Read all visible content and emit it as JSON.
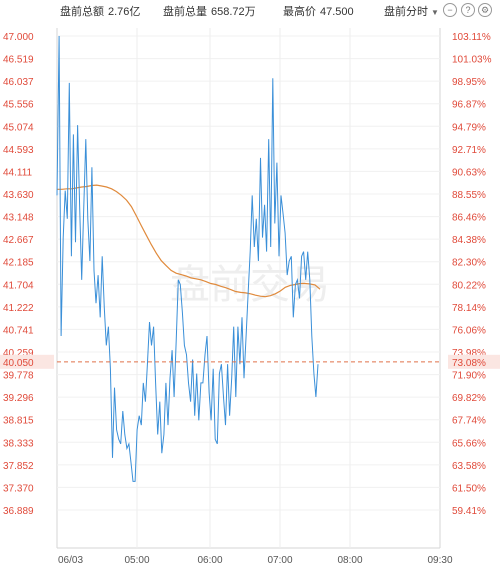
{
  "header": {
    "stats": [
      {
        "label": "盘前总额",
        "value": "2.76亿"
      },
      {
        "label": "盘前总量",
        "value": "658.72万"
      },
      {
        "label": "最高价",
        "value": "47.500"
      }
    ],
    "period_select": "盘前分时"
  },
  "colors": {
    "price_line": "#3a8fd8",
    "avg_line": "#e08a3c",
    "axis_text": "#e04a3a",
    "ref_line": "#e0724a"
  },
  "watermark": "盘前交易",
  "chart_data": {
    "type": "line",
    "ylim": [
      36.889,
      47.0
    ],
    "y_ticks": [
      "47.000",
      "46.519",
      "46.037",
      "45.556",
      "45.074",
      "44.593",
      "44.111",
      "43.630",
      "43.148",
      "42.667",
      "42.185",
      "41.704",
      "41.222",
      "40.741",
      "40.259",
      "39.778",
      "39.296",
      "38.815",
      "38.333",
      "37.852",
      "37.370",
      "36.889"
    ],
    "pct_ticks": [
      "103.11%",
      "101.03%",
      "98.95%",
      "96.87%",
      "94.79%",
      "92.71%",
      "90.63%",
      "88.55%",
      "86.46%",
      "84.38%",
      "82.30%",
      "80.22%",
      "78.14%",
      "76.06%",
      "73.98%",
      "71.90%",
      "69.82%",
      "67.74%",
      "65.66%",
      "63.58%",
      "61.50%",
      "59.41%"
    ],
    "x_ticks": [
      "06/03",
      "05:00",
      "06:00",
      "07:00",
      "08:00",
      "09:30"
    ],
    "ref_price": "40.050",
    "ref_pct": "73.08%",
    "series": [
      {
        "name": "price",
        "values": [
          43.6,
          47.0,
          40.6,
          42.7,
          43.7,
          43.1,
          46.0,
          42.3,
          44.9,
          42.6,
          45.1,
          43.4,
          41.8,
          43.3,
          44.8,
          43.1,
          42.2,
          44.2,
          42.0,
          41.3,
          41.9,
          41.0,
          42.3,
          41.2,
          40.4,
          40.8,
          39.9,
          38.0,
          39.5,
          38.6,
          38.4,
          38.3,
          39.0,
          38.5,
          38.2,
          38.3,
          37.9,
          37.5,
          37.5,
          38.6,
          38.9,
          38.7,
          39.6,
          39.2,
          40.0,
          40.9,
          40.4,
          40.8,
          39.6,
          38.5,
          39.2,
          38.1,
          38.5,
          39.6,
          38.7,
          39.7,
          40.3,
          39.3,
          40.5,
          41.8,
          41.7,
          41.1,
          40.4,
          40.2,
          39.6,
          39.2,
          40.1,
          38.9,
          39.8,
          38.8,
          39.6,
          39.6,
          40.2,
          40.6,
          39.4,
          38.8,
          39.9,
          38.4,
          38.3,
          39.8,
          40.0,
          39.3,
          38.7,
          40.0,
          38.9,
          39.7,
          40.8,
          39.3,
          40.8,
          40.0,
          41.0,
          39.7,
          40.6,
          41.5,
          42.4,
          43.6,
          42.5,
          43.1,
          42.2,
          44.4,
          42.7,
          43.4,
          42.4,
          44.8,
          42.5,
          46.1,
          43.0,
          44.3,
          42.3,
          43.6,
          43.2,
          42.8,
          41.9,
          42.2,
          42.3,
          41.0,
          41.7,
          41.8,
          41.4,
          42.3,
          42.4,
          41.8,
          42.4,
          41.8,
          40.6,
          39.8,
          39.3,
          40.0
        ],
        "avg": [
          43.73,
          43.73,
          43.74,
          43.74,
          43.76,
          43.78,
          43.79,
          43.81,
          43.82,
          43.8,
          43.78,
          43.74,
          43.68,
          43.6,
          43.5,
          43.36,
          43.16,
          42.95,
          42.75,
          42.55,
          42.37,
          42.21,
          42.1,
          42.0,
          41.94,
          41.91,
          41.88,
          41.84,
          41.82,
          41.8,
          41.76,
          41.72,
          41.7,
          41.66,
          41.63,
          41.59,
          41.55,
          41.53,
          41.52,
          41.5,
          41.47,
          41.45,
          41.44,
          41.46,
          41.5,
          41.56,
          41.64,
          41.68,
          41.7,
          41.72,
          41.72,
          41.71,
          41.69,
          41.6
        ]
      }
    ]
  }
}
